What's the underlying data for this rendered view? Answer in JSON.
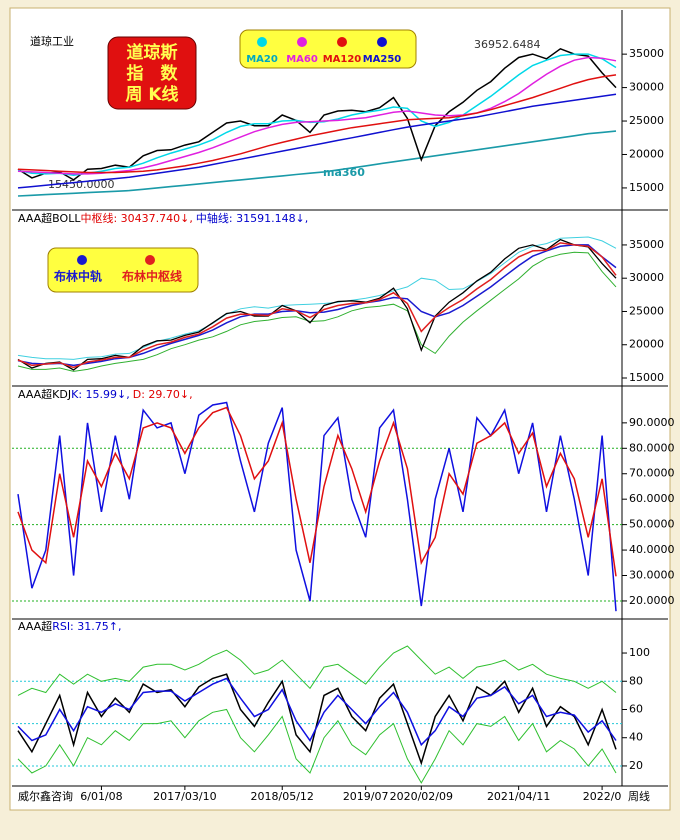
{
  "chart_data": [
    {
      "type": "line",
      "subtitle": "道琼工业",
      "title_lines": [
        "道琼斯",
        "指　数",
        "周 K线"
      ],
      "close": {
        "color": "#000000",
        "values": [
          17800,
          16500,
          17200,
          17400,
          16200,
          17800,
          17900,
          18400,
          18100,
          19800,
          20600,
          20700,
          21400,
          21900,
          23300,
          24700,
          25000,
          24300,
          24300,
          25900,
          25100,
          23300,
          25900,
          26500,
          26600,
          26400,
          27000,
          28500,
          25400,
          19200,
          24300,
          26400,
          27800,
          29600,
          30900,
          32900,
          34500,
          35000,
          34300,
          35800,
          35000,
          34700,
          32200,
          30000
        ]
      },
      "series": [
        {
          "name": "MA20",
          "color": "#00d8e8",
          "values": [
            17600,
            17200,
            17100,
            17200,
            16900,
            17200,
            17500,
            17900,
            18100,
            18700,
            19500,
            20200,
            20800,
            21400,
            22200,
            23300,
            24200,
            24600,
            24600,
            25000,
            25100,
            24800,
            24900,
            25300,
            25900,
            26300,
            26600,
            27100,
            26900,
            25000,
            24200,
            24800,
            25900,
            27300,
            28700,
            30300,
            31900,
            33300,
            34100,
            34800,
            35000,
            35000,
            34300,
            33000
          ]
        },
        {
          "name": "MA60",
          "color": "#e020e0",
          "values": [
            17500,
            17400,
            17300,
            17200,
            17100,
            17100,
            17200,
            17400,
            17600,
            18000,
            18500,
            19100,
            19700,
            20300,
            21000,
            21800,
            22600,
            23400,
            24000,
            24500,
            24800,
            24900,
            25000,
            25100,
            25300,
            25500,
            25900,
            26300,
            26500,
            26200,
            25900,
            25800,
            25900,
            26200,
            26900,
            27900,
            29100,
            30600,
            32000,
            33200,
            34100,
            34500,
            34400,
            34000
          ]
        },
        {
          "name": "MA120",
          "color": "#e01010",
          "values": [
            17800,
            17700,
            17600,
            17500,
            17400,
            17300,
            17300,
            17300,
            17400,
            17500,
            17700,
            18000,
            18300,
            18700,
            19100,
            19600,
            20100,
            20700,
            21300,
            21800,
            22300,
            22800,
            23200,
            23600,
            24000,
            24300,
            24600,
            24900,
            25200,
            25300,
            25400,
            25500,
            25800,
            26200,
            26700,
            27300,
            27900,
            28500,
            29200,
            29900,
            30600,
            31200,
            31600,
            31900
          ]
        },
        {
          "name": "MA250",
          "color": "#1010d0",
          "values": [
            15000,
            15200,
            15400,
            15600,
            15800,
            16000,
            16200,
            16400,
            16600,
            16900,
            17200,
            17500,
            17800,
            18100,
            18500,
            18900,
            19300,
            19700,
            20100,
            20500,
            20900,
            21300,
            21700,
            22100,
            22500,
            22900,
            23300,
            23700,
            24100,
            24400,
            24700,
            25000,
            25300,
            25600,
            26000,
            26400,
            26800,
            27200,
            27500,
            27800,
            28100,
            28400,
            28700,
            29000
          ]
        }
      ],
      "ma360": {
        "label": "ma360",
        "color": "#1a9aa8",
        "values": [
          13800,
          13900,
          14000,
          14100,
          14200,
          14300,
          14400,
          14500,
          14600,
          14800,
          15000,
          15200,
          15400,
          15600,
          15800,
          16000,
          16200,
          16400,
          16600,
          16800,
          17000,
          17200,
          17400,
          17700,
          18000,
          18300,
          18600,
          18900,
          19200,
          19500,
          19800,
          20100,
          20400,
          20700,
          21000,
          21300,
          21600,
          21900,
          22200,
          22500,
          22800,
          23100,
          23300,
          23500
        ]
      },
      "high_label": "36952.6484",
      "low_label": "15450.0000",
      "ylim": [
        11700,
        41300
      ],
      "yticks": [
        15000,
        20000,
        25000,
        30000,
        35000
      ]
    },
    {
      "type": "line",
      "indicator": "AAA超BOLL",
      "readouts": [
        {
          "text": "中枢线: 30437.740↓,",
          "color": "#e00000"
        },
        {
          "text": "中轴线: 31591.148↓,",
          "color": "#0000cc"
        }
      ],
      "series": [
        {
          "name": "布林中轨",
          "color": "#1a1ad0",
          "values": [
            17600,
            17200,
            17100,
            17200,
            16900,
            17200,
            17500,
            17900,
            18100,
            18700,
            19500,
            20200,
            20800,
            21400,
            22200,
            23300,
            24200,
            24600,
            24600,
            25000,
            25100,
            24800,
            24900,
            25300,
            25900,
            26300,
            26600,
            27100,
            26900,
            25000,
            24200,
            24800,
            25900,
            27300,
            28700,
            30300,
            31900,
            33300,
            34100,
            34800,
            35000,
            35000,
            33200,
            31591.148
          ]
        },
        {
          "name": "布林中枢线",
          "color": "#e02020",
          "values": [
            17700,
            16900,
            17100,
            17300,
            16600,
            17400,
            17700,
            18100,
            18100,
            19200,
            20000,
            20400,
            21100,
            21600,
            22700,
            24000,
            24600,
            24500,
            24400,
            25400,
            25100,
            24100,
            25300,
            25900,
            26200,
            26300,
            26800,
            27800,
            26200,
            22000,
            24200,
            25600,
            26800,
            28400,
            29800,
            31600,
            33200,
            34100,
            34200,
            35300,
            35000,
            34800,
            33200,
            30437.74
          ]
        }
      ],
      "bands": [
        {
          "color": "#40d0e0",
          "values": [
            18400,
            18100,
            17900,
            17900,
            17800,
            18100,
            18200,
            18600,
            18700,
            19600,
            20500,
            21000,
            21600,
            22100,
            23200,
            24600,
            25400,
            25700,
            25500,
            25900,
            26000,
            26100,
            26200,
            26400,
            26700,
            27000,
            27400,
            28100,
            28700,
            30000,
            29700,
            28300,
            28400,
            29500,
            30700,
            32300,
            33900,
            34800,
            35200,
            36000,
            36100,
            36200,
            35600,
            34500
          ]
        },
        {
          "color": "#30b030",
          "values": [
            16800,
            16300,
            16300,
            16500,
            16000,
            16300,
            16800,
            17200,
            17500,
            17800,
            18500,
            19400,
            20000,
            20700,
            21200,
            22000,
            23000,
            23500,
            23700,
            24100,
            24200,
            23500,
            23600,
            24200,
            25100,
            25600,
            25800,
            26100,
            25100,
            20000,
            18700,
            21300,
            23400,
            25100,
            26700,
            28300,
            29900,
            31800,
            33000,
            33600,
            33900,
            33800,
            31000,
            28700
          ]
        }
      ],
      "ylim": [
        13950,
        39950
      ],
      "yticks": [
        15000,
        20000,
        25000,
        30000,
        35000
      ]
    },
    {
      "type": "line",
      "indicator": "AAA超KDJ",
      "readouts": [
        {
          "text": "K: 15.99↓,",
          "color": "#0000cc"
        },
        {
          "text": "D: 29.70↓,",
          "color": "#e00000"
        }
      ],
      "series": [
        {
          "color": "#1010e0",
          "values": [
            62,
            25,
            40,
            85,
            30,
            90,
            55,
            85,
            60,
            95,
            88,
            90,
            70,
            93,
            97,
            98,
            75,
            55,
            82,
            96,
            40,
            20,
            85,
            92,
            60,
            45,
            88,
            95,
            60,
            18,
            60,
            80,
            55,
            92,
            85,
            95,
            70,
            90,
            55,
            85,
            60,
            30,
            85,
            15.99
          ]
        },
        {
          "color": "#e01010",
          "values": [
            55,
            40,
            35,
            70,
            45,
            75,
            65,
            78,
            68,
            88,
            90,
            88,
            78,
            88,
            94,
            96,
            85,
            68,
            75,
            90,
            60,
            35,
            65,
            85,
            72,
            55,
            75,
            90,
            72,
            35,
            45,
            70,
            62,
            82,
            85,
            90,
            78,
            86,
            65,
            78,
            68,
            45,
            68,
            29.7
          ]
        }
      ],
      "hlines": [
        20,
        50,
        80
      ],
      "hline_color": "#20b020",
      "ylim": [
        13.3,
        103.7
      ],
      "yticks": [
        {
          "value": 20,
          "label": "20.0000"
        },
        {
          "value": 30,
          "label": "30.0000"
        },
        {
          "value": 40,
          "label": "40.0000"
        },
        {
          "value": 50,
          "label": "50.0000"
        },
        {
          "value": 60,
          "label": "60.0000"
        },
        {
          "value": 70,
          "label": "70.0000"
        },
        {
          "value": 80,
          "label": "80.0000"
        },
        {
          "value": 90,
          "label": "90.0000"
        }
      ]
    },
    {
      "type": "line",
      "indicator": "AAA超",
      "readouts": [
        {
          "text": "RSI: 31.75↑,",
          "color": "#0000cc"
        }
      ],
      "series": [
        {
          "color": "#000000",
          "values": [
            45,
            30,
            50,
            70,
            35,
            72,
            55,
            68,
            58,
            78,
            72,
            74,
            62,
            76,
            82,
            85,
            60,
            48,
            65,
            80,
            42,
            30,
            70,
            75,
            55,
            45,
            68,
            78,
            50,
            22,
            55,
            70,
            52,
            76,
            70,
            80,
            58,
            75,
            48,
            62,
            55,
            35,
            60,
            31.75
          ]
        },
        {
          "color": "#1010e0",
          "values": [
            48,
            38,
            42,
            60,
            45,
            62,
            58,
            64,
            60,
            72,
            73,
            73,
            66,
            72,
            78,
            82,
            68,
            55,
            60,
            74,
            52,
            38,
            58,
            70,
            60,
            50,
            62,
            72,
            58,
            35,
            45,
            62,
            55,
            68,
            70,
            76,
            64,
            70,
            55,
            58,
            56,
            44,
            52,
            38
          ]
        }
      ],
      "bands": [
        {
          "color": "#30c030",
          "values": [
            70,
            75,
            72,
            85,
            78,
            85,
            80,
            82,
            80,
            90,
            92,
            92,
            88,
            92,
            98,
            102,
            95,
            85,
            88,
            95,
            85,
            75,
            90,
            92,
            85,
            78,
            90,
            100,
            105,
            95,
            85,
            90,
            82,
            90,
            92,
            95,
            88,
            92,
            85,
            82,
            80,
            75,
            80,
            72
          ]
        },
        {
          "color": "#30c030",
          "values": [
            25,
            15,
            20,
            35,
            20,
            40,
            35,
            45,
            38,
            50,
            50,
            52,
            40,
            52,
            58,
            60,
            40,
            30,
            42,
            55,
            25,
            15,
            40,
            52,
            35,
            28,
            42,
            50,
            25,
            8,
            25,
            45,
            35,
            50,
            48,
            55,
            38,
            50,
            30,
            38,
            32,
            20,
            32,
            15
          ]
        }
      ],
      "hlines": [
        20,
        50,
        80
      ],
      "hline_color": "#20c8d8",
      "ylim": [
        6.5,
        123.4
      ],
      "yticks": [
        20,
        40,
        60,
        80,
        100
      ],
      "categories": [
        null,
        null,
        null,
        null,
        null,
        null,
        "6/01/08",
        null,
        null,
        null,
        null,
        null,
        "2017/03/10",
        null,
        null,
        null,
        null,
        null,
        null,
        "2018/05/12",
        null,
        null,
        null,
        null,
        null,
        "2019/07",
        null,
        null,
        null,
        "2020/02/09",
        null,
        null,
        null,
        null,
        null,
        null,
        "2021/04/11",
        null,
        null,
        null,
        null,
        null,
        "2022/0",
        null
      ],
      "footer": "威尔鑫咨询",
      "period": "周线"
    }
  ]
}
